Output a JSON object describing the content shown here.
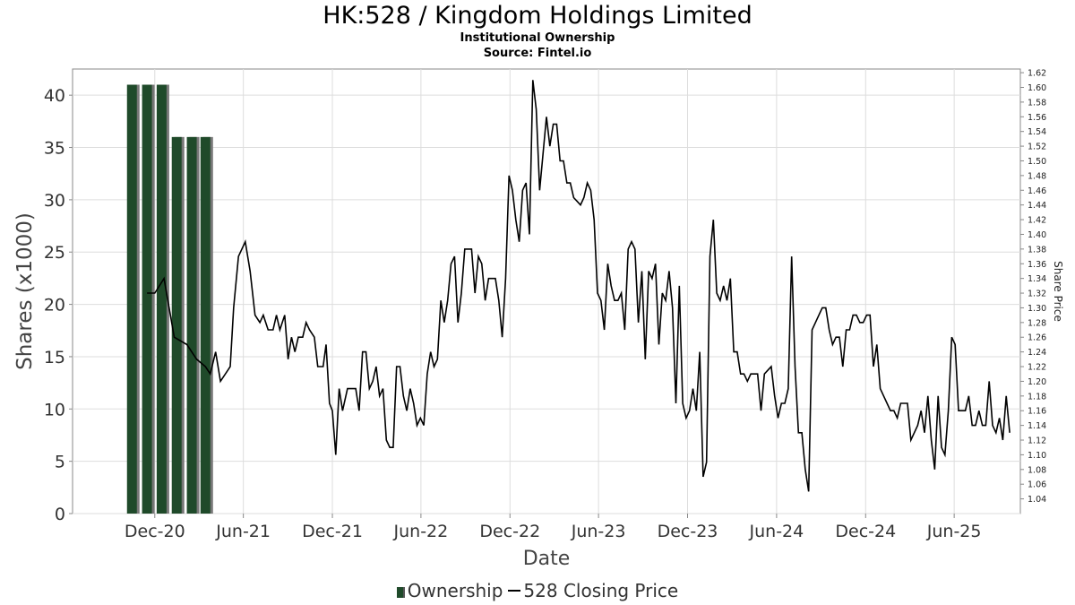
{
  "title": "HK:528 / Kingdom Holdings Limited",
  "subtitle": "Institutional Ownership",
  "source": "Source: Fintel.io",
  "chart_data": {
    "type": "bar+line",
    "xlabel": "Date",
    "ylabel": "Shares (x1000)",
    "y2label": "Share Price",
    "grid": true,
    "legend_placement": "bottom-center",
    "x_range": [
      "2020-06-15",
      "2025-10-15"
    ],
    "x_ticks": [
      "Dec-20",
      "Jun-21",
      "Dec-21",
      "Jun-22",
      "Dec-22",
      "Jun-23",
      "Dec-23",
      "Jun-24",
      "Dec-24",
      "Jun-25"
    ],
    "y_range": [
      0,
      42.5
    ],
    "y_ticks": [
      0,
      5,
      10,
      15,
      20,
      25,
      30,
      35,
      40
    ],
    "y2_range": [
      1.02,
      1.625
    ],
    "y2_ticks": [
      "1.04",
      "1.06",
      "1.08",
      "1.10",
      "1.12",
      "1.14",
      "1.16",
      "1.18",
      "1.20",
      "1.22",
      "1.24",
      "1.26",
      "1.28",
      "1.30",
      "1.32",
      "1.34",
      "1.36",
      "1.38",
      "1.40",
      "1.42",
      "1.44",
      "1.46",
      "1.48",
      "1.50",
      "1.52",
      "1.54",
      "1.56",
      "1.58",
      "1.60",
      "1.62"
    ],
    "series": [
      {
        "name": "Ownership",
        "type": "bar",
        "axis": "left",
        "color": "#1f4a2a",
        "points": [
          {
            "date": "2020-10-15",
            "value": 41
          },
          {
            "date": "2020-11-15",
            "value": 41
          },
          {
            "date": "2020-12-15",
            "value": 41
          },
          {
            "date": "2021-01-15",
            "value": 36
          },
          {
            "date": "2021-02-15",
            "value": 36
          },
          {
            "date": "2021-03-15",
            "value": 36
          }
        ]
      },
      {
        "name": "528 Closing Price",
        "type": "line",
        "axis": "right",
        "color": "#000000",
        "points": [
          [
            "2020-11-15",
            1.32
          ],
          [
            "2020-12-01",
            1.32
          ],
          [
            "2020-12-20",
            1.34
          ],
          [
            "2021-01-10",
            1.26
          ],
          [
            "2021-02-05",
            1.25
          ],
          [
            "2021-02-25",
            1.23
          ],
          [
            "2021-03-15",
            1.22
          ],
          [
            "2021-03-25",
            1.21
          ],
          [
            "2021-04-05",
            1.24
          ],
          [
            "2021-04-15",
            1.2
          ],
          [
            "2021-05-05",
            1.22
          ],
          [
            "2021-05-12",
            1.3
          ],
          [
            "2021-05-22",
            1.37
          ],
          [
            "2021-06-05",
            1.39
          ],
          [
            "2021-06-15",
            1.35
          ],
          [
            "2021-06-25",
            1.29
          ],
          [
            "2021-07-05",
            1.28
          ],
          [
            "2021-07-12",
            1.29
          ],
          [
            "2021-07-22",
            1.27
          ],
          [
            "2021-08-01",
            1.27
          ],
          [
            "2021-08-08",
            1.29
          ],
          [
            "2021-08-15",
            1.27
          ],
          [
            "2021-08-25",
            1.29
          ],
          [
            "2021-09-01",
            1.23
          ],
          [
            "2021-09-08",
            1.26
          ],
          [
            "2021-09-15",
            1.24
          ],
          [
            "2021-09-22",
            1.26
          ],
          [
            "2021-10-01",
            1.26
          ],
          [
            "2021-10-08",
            1.28
          ],
          [
            "2021-10-15",
            1.27
          ],
          [
            "2021-10-25",
            1.26
          ],
          [
            "2021-11-01",
            1.22
          ],
          [
            "2021-11-12",
            1.22
          ],
          [
            "2021-11-18",
            1.25
          ],
          [
            "2021-11-25",
            1.17
          ],
          [
            "2021-12-01",
            1.16
          ],
          [
            "2021-12-08",
            1.1
          ],
          [
            "2021-12-15",
            1.19
          ],
          [
            "2021-12-22",
            1.16
          ],
          [
            "2022-01-01",
            1.19
          ],
          [
            "2022-01-18",
            1.19
          ],
          [
            "2022-01-25",
            1.16
          ],
          [
            "2022-02-01",
            1.24
          ],
          [
            "2022-02-08",
            1.24
          ],
          [
            "2022-02-15",
            1.19
          ],
          [
            "2022-02-22",
            1.2
          ],
          [
            "2022-03-01",
            1.22
          ],
          [
            "2022-03-08",
            1.18
          ],
          [
            "2022-03-15",
            1.19
          ],
          [
            "2022-03-22",
            1.12
          ],
          [
            "2022-03-29",
            1.11
          ],
          [
            "2022-04-05",
            1.11
          ],
          [
            "2022-04-12",
            1.22
          ],
          [
            "2022-04-19",
            1.22
          ],
          [
            "2022-04-26",
            1.18
          ],
          [
            "2022-05-03",
            1.16
          ],
          [
            "2022-05-10",
            1.19
          ],
          [
            "2022-05-17",
            1.17
          ],
          [
            "2022-05-24",
            1.14
          ],
          [
            "2022-05-31",
            1.15
          ],
          [
            "2022-06-07",
            1.14
          ],
          [
            "2022-06-14",
            1.21
          ],
          [
            "2022-06-21",
            1.24
          ],
          [
            "2022-06-28",
            1.22
          ],
          [
            "2022-07-05",
            1.23
          ],
          [
            "2022-07-12",
            1.31
          ],
          [
            "2022-07-19",
            1.28
          ],
          [
            "2022-07-26",
            1.31
          ],
          [
            "2022-08-02",
            1.36
          ],
          [
            "2022-08-09",
            1.37
          ],
          [
            "2022-08-16",
            1.28
          ],
          [
            "2022-08-23",
            1.32
          ],
          [
            "2022-08-30",
            1.38
          ],
          [
            "2022-09-06",
            1.38
          ],
          [
            "2022-09-13",
            1.38
          ],
          [
            "2022-09-20",
            1.32
          ],
          [
            "2022-09-27",
            1.37
          ],
          [
            "2022-10-04",
            1.36
          ],
          [
            "2022-10-11",
            1.31
          ],
          [
            "2022-10-18",
            1.34
          ],
          [
            "2022-10-25",
            1.34
          ],
          [
            "2022-11-01",
            1.34
          ],
          [
            "2022-11-08",
            1.31
          ],
          [
            "2022-11-15",
            1.26
          ],
          [
            "2022-11-22",
            1.34
          ],
          [
            "2022-11-29",
            1.48
          ],
          [
            "2022-12-06",
            1.46
          ],
          [
            "2022-12-13",
            1.42
          ],
          [
            "2022-12-20",
            1.39
          ],
          [
            "2022-12-27",
            1.46
          ],
          [
            "2023-01-03",
            1.47
          ],
          [
            "2023-01-10",
            1.4
          ],
          [
            "2023-01-17",
            1.61
          ],
          [
            "2023-01-24",
            1.57
          ],
          [
            "2023-01-31",
            1.46
          ],
          [
            "2023-02-07",
            1.51
          ],
          [
            "2023-02-14",
            1.56
          ],
          [
            "2023-02-21",
            1.52
          ],
          [
            "2023-02-28",
            1.55
          ],
          [
            "2023-03-07",
            1.55
          ],
          [
            "2023-03-14",
            1.5
          ],
          [
            "2023-03-21",
            1.5
          ],
          [
            "2023-03-28",
            1.47
          ],
          [
            "2023-04-04",
            1.47
          ],
          [
            "2023-04-11",
            1.45
          ],
          [
            "2023-04-18",
            1.445
          ],
          [
            "2023-04-25",
            1.44
          ],
          [
            "2023-05-02",
            1.45
          ],
          [
            "2023-05-09",
            1.47
          ],
          [
            "2023-05-16",
            1.46
          ],
          [
            "2023-05-23",
            1.42
          ],
          [
            "2023-05-30",
            1.32
          ],
          [
            "2023-06-06",
            1.31
          ],
          [
            "2023-06-13",
            1.27
          ],
          [
            "2023-06-20",
            1.36
          ],
          [
            "2023-06-27",
            1.33
          ],
          [
            "2023-07-04",
            1.31
          ],
          [
            "2023-07-11",
            1.31
          ],
          [
            "2023-07-18",
            1.32
          ],
          [
            "2023-07-25",
            1.27
          ],
          [
            "2023-08-01",
            1.38
          ],
          [
            "2023-08-08",
            1.39
          ],
          [
            "2023-08-15",
            1.38
          ],
          [
            "2023-08-22",
            1.28
          ],
          [
            "2023-08-29",
            1.35
          ],
          [
            "2023-09-05",
            1.23
          ],
          [
            "2023-09-12",
            1.35
          ],
          [
            "2023-09-19",
            1.34
          ],
          [
            "2023-09-26",
            1.36
          ],
          [
            "2023-10-03",
            1.25
          ],
          [
            "2023-10-10",
            1.32
          ],
          [
            "2023-10-17",
            1.31
          ],
          [
            "2023-10-24",
            1.35
          ],
          [
            "2023-10-31",
            1.3
          ],
          [
            "2023-11-07",
            1.17
          ],
          [
            "2023-11-14",
            1.33
          ],
          [
            "2023-11-21",
            1.17
          ],
          [
            "2023-11-28",
            1.15
          ],
          [
            "2023-12-05",
            1.16
          ],
          [
            "2023-12-12",
            1.19
          ],
          [
            "2023-12-19",
            1.16
          ],
          [
            "2023-12-26",
            1.24
          ],
          [
            "2024-01-02",
            1.07
          ],
          [
            "2024-01-09",
            1.09
          ],
          [
            "2024-01-16",
            1.37
          ],
          [
            "2024-01-23",
            1.42
          ],
          [
            "2024-01-30",
            1.32
          ],
          [
            "2024-02-06",
            1.31
          ],
          [
            "2024-02-13",
            1.33
          ],
          [
            "2024-02-20",
            1.31
          ],
          [
            "2024-02-27",
            1.34
          ],
          [
            "2024-03-05",
            1.24
          ],
          [
            "2024-03-12",
            1.24
          ],
          [
            "2024-03-19",
            1.21
          ],
          [
            "2024-03-26",
            1.21
          ],
          [
            "2024-04-02",
            1.2
          ],
          [
            "2024-04-09",
            1.21
          ],
          [
            "2024-04-16",
            1.21
          ],
          [
            "2024-04-23",
            1.21
          ],
          [
            "2024-04-30",
            1.16
          ],
          [
            "2024-05-07",
            1.21
          ],
          [
            "2024-05-14",
            1.215
          ],
          [
            "2024-05-21",
            1.22
          ],
          [
            "2024-05-28",
            1.18
          ],
          [
            "2024-06-04",
            1.15
          ],
          [
            "2024-06-11",
            1.17
          ],
          [
            "2024-06-18",
            1.17
          ],
          [
            "2024-06-25",
            1.19
          ],
          [
            "2024-07-02",
            1.37
          ],
          [
            "2024-07-09",
            1.22
          ],
          [
            "2024-07-16",
            1.13
          ],
          [
            "2024-07-23",
            1.13
          ],
          [
            "2024-07-30",
            1.08
          ],
          [
            "2024-08-06",
            1.05
          ],
          [
            "2024-08-13",
            1.27
          ],
          [
            "2024-08-20",
            1.28
          ],
          [
            "2024-08-27",
            1.29
          ],
          [
            "2024-09-03",
            1.3
          ],
          [
            "2024-09-10",
            1.3
          ],
          [
            "2024-09-17",
            1.27
          ],
          [
            "2024-09-24",
            1.25
          ],
          [
            "2024-10-01",
            1.26
          ],
          [
            "2024-10-08",
            1.26
          ],
          [
            "2024-10-15",
            1.22
          ],
          [
            "2024-10-22",
            1.27
          ],
          [
            "2024-10-29",
            1.27
          ],
          [
            "2024-11-05",
            1.29
          ],
          [
            "2024-11-12",
            1.29
          ],
          [
            "2024-11-19",
            1.28
          ],
          [
            "2024-11-26",
            1.28
          ],
          [
            "2024-12-03",
            1.29
          ],
          [
            "2024-12-10",
            1.29
          ],
          [
            "2024-12-17",
            1.22
          ],
          [
            "2024-12-24",
            1.25
          ],
          [
            "2024-12-31",
            1.19
          ],
          [
            "2025-01-07",
            1.18
          ],
          [
            "2025-01-14",
            1.17
          ],
          [
            "2025-01-21",
            1.16
          ],
          [
            "2025-01-28",
            1.16
          ],
          [
            "2025-02-04",
            1.15
          ],
          [
            "2025-02-11",
            1.17
          ],
          [
            "2025-02-18",
            1.17
          ],
          [
            "2025-02-25",
            1.17
          ],
          [
            "2025-03-04",
            1.12
          ],
          [
            "2025-03-11",
            1.13
          ],
          [
            "2025-03-18",
            1.14
          ],
          [
            "2025-03-25",
            1.16
          ],
          [
            "2025-04-01",
            1.13
          ],
          [
            "2025-04-08",
            1.18
          ],
          [
            "2025-04-15",
            1.12
          ],
          [
            "2025-04-22",
            1.08
          ],
          [
            "2025-04-29",
            1.18
          ],
          [
            "2025-05-06",
            1.11
          ],
          [
            "2025-05-13",
            1.1
          ],
          [
            "2025-05-20",
            1.16
          ],
          [
            "2025-05-27",
            1.26
          ],
          [
            "2025-06-03",
            1.25
          ],
          [
            "2025-06-10",
            1.16
          ],
          [
            "2025-06-17",
            1.16
          ],
          [
            "2025-06-24",
            1.16
          ],
          [
            "2025-07-01",
            1.18
          ],
          [
            "2025-07-08",
            1.14
          ],
          [
            "2025-07-15",
            1.14
          ],
          [
            "2025-07-22",
            1.16
          ],
          [
            "2025-07-29",
            1.14
          ],
          [
            "2025-08-05",
            1.14
          ],
          [
            "2025-08-12",
            1.2
          ],
          [
            "2025-08-19",
            1.14
          ],
          [
            "2025-08-26",
            1.13
          ],
          [
            "2025-09-02",
            1.15
          ],
          [
            "2025-09-09",
            1.12
          ],
          [
            "2025-09-16",
            1.18
          ],
          [
            "2025-09-23",
            1.13
          ]
        ]
      }
    ]
  }
}
